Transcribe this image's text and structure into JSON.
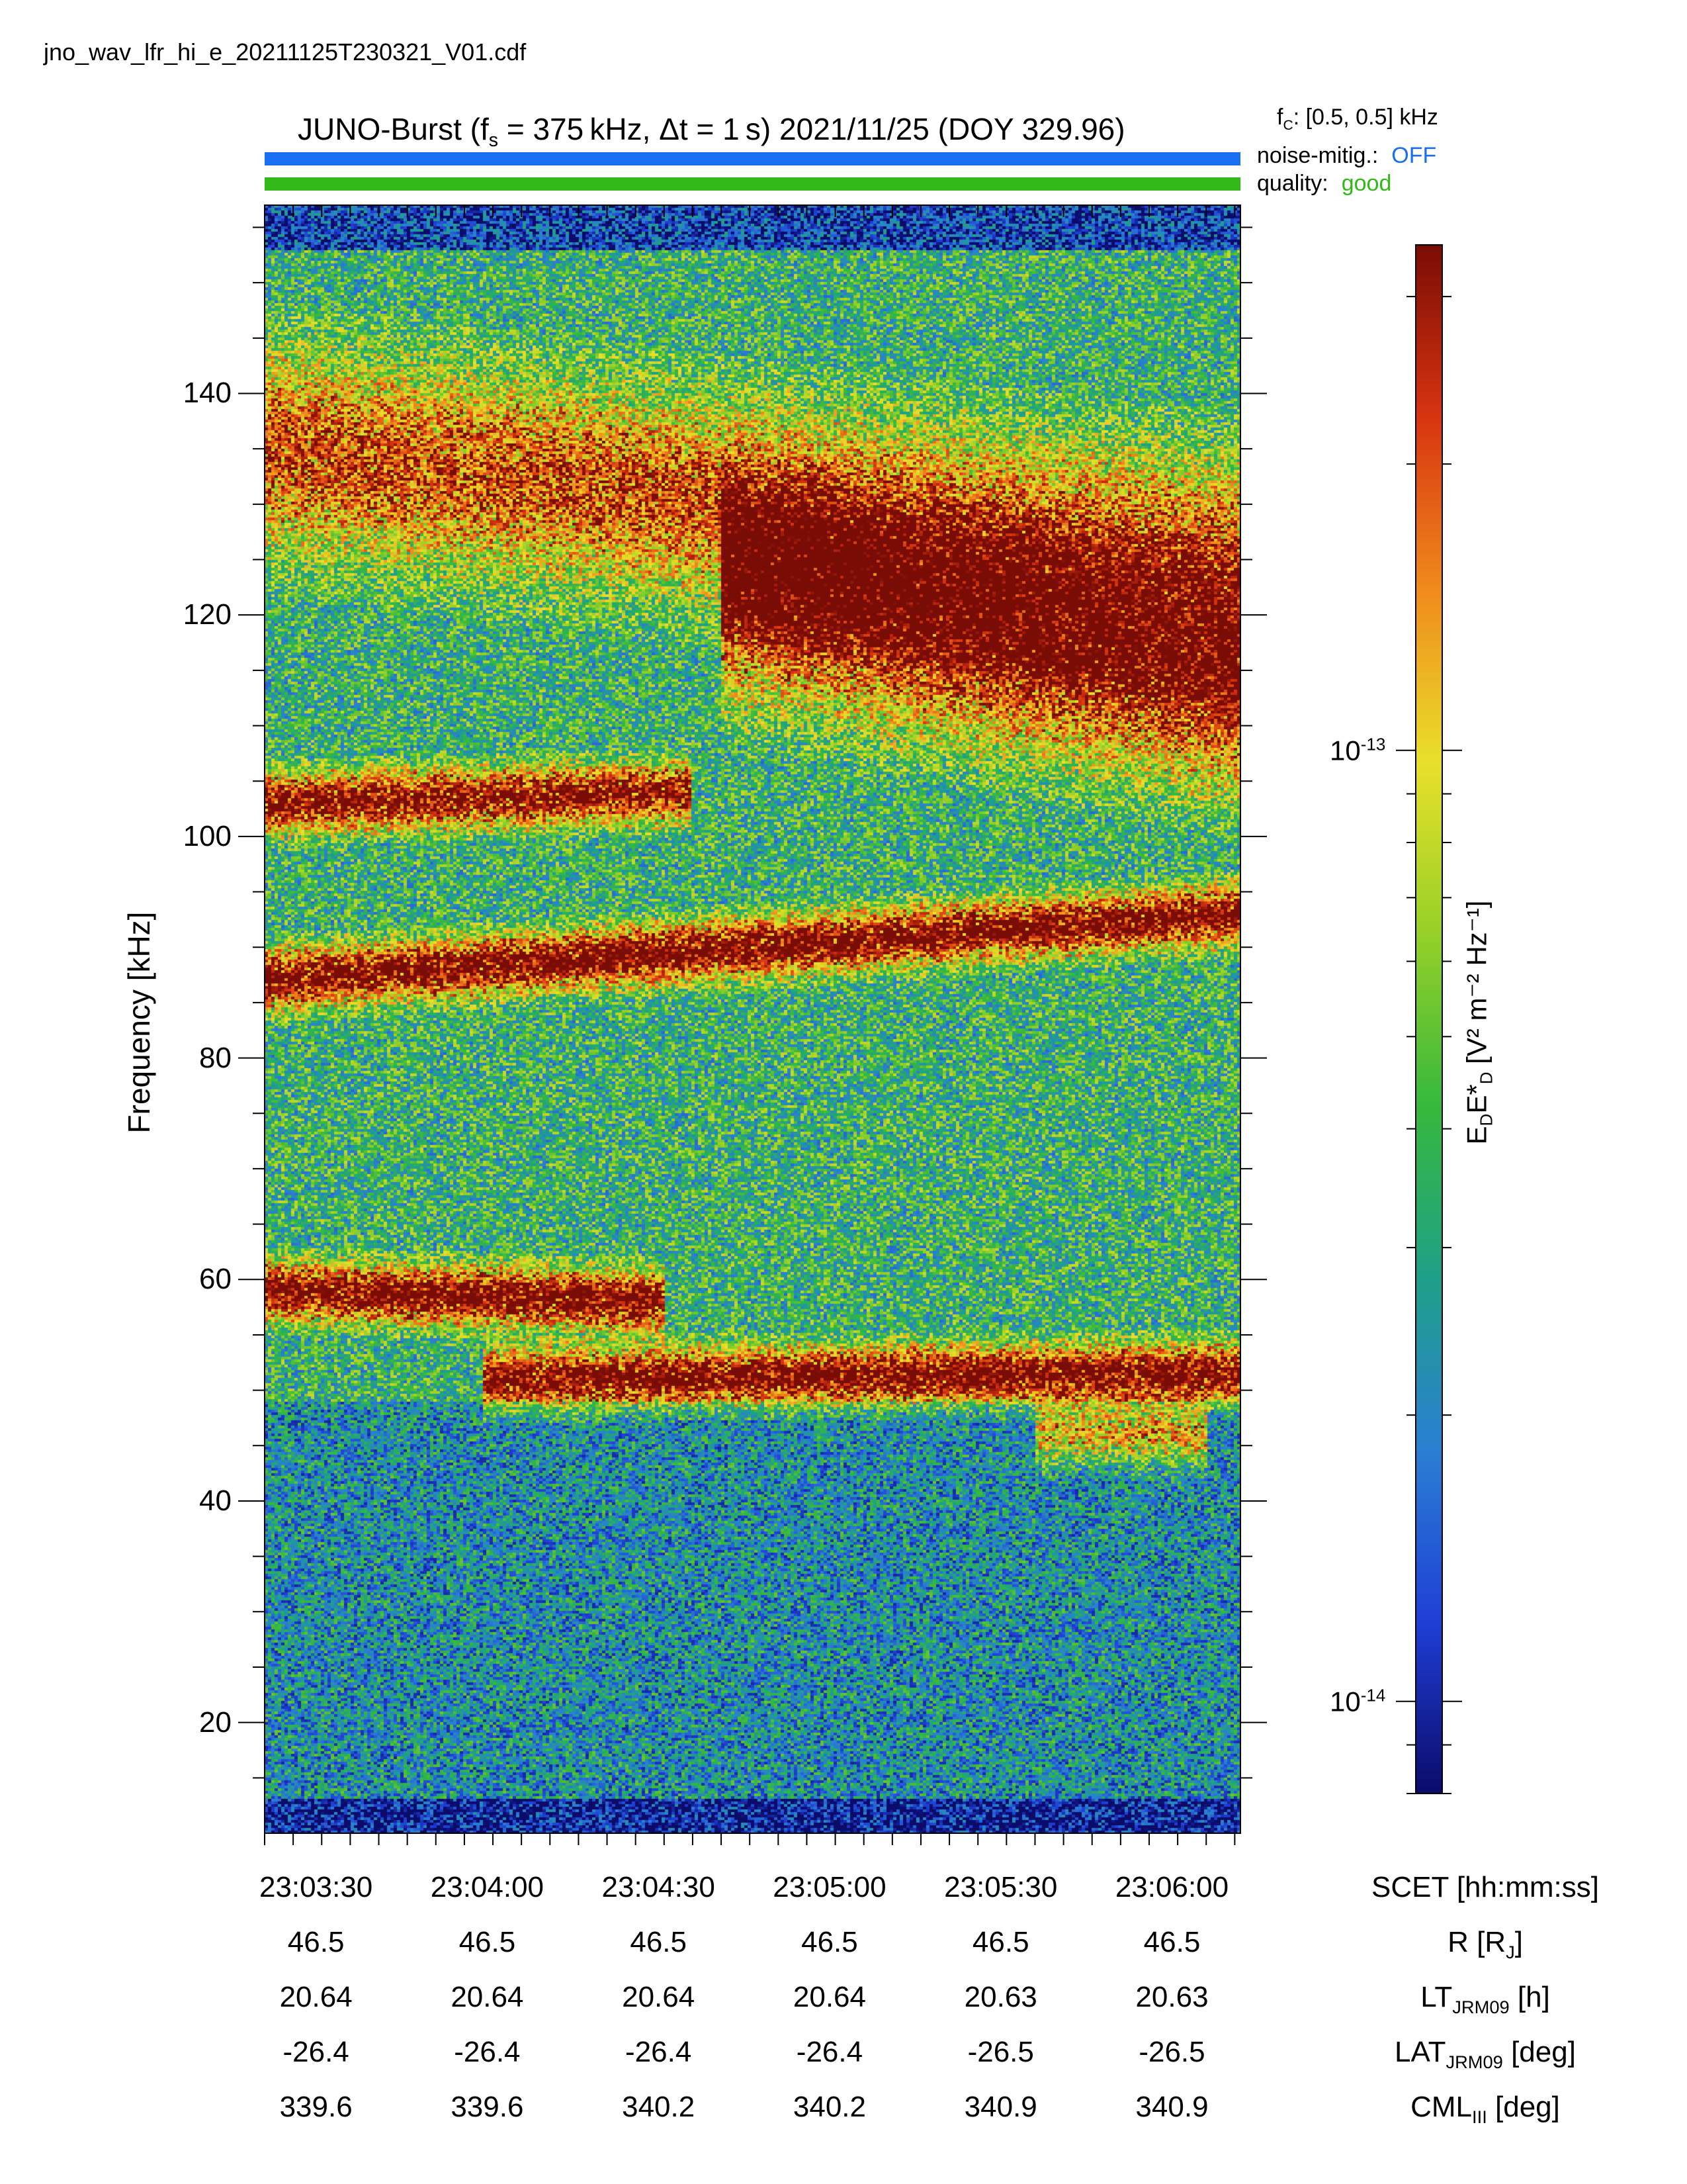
{
  "header": {
    "filename": "jno_wav_lfr_hi_e_20211125T230321_V01.cdf",
    "title_prefix": "JUNO-Burst (f",
    "title_sub": "s",
    "title_suffix": " = 375 kHz, Δt = 1 s)  2021/11/25 (DOY 329.96)",
    "fc_prefix": "f",
    "fc_sub": "C",
    "fc_suffix": ": [0.5, 0.5] kHz"
  },
  "status": {
    "noise_label": "noise-mitig.:",
    "noise_value": "OFF",
    "noise_color": "#1a6ef2",
    "quality_label": "quality:",
    "quality_value": "good",
    "quality_color": "#33b81a"
  },
  "chart_data": {
    "type": "heatmap",
    "ylabel": "Frequency [kHz]",
    "ylim": [
      10,
      157
    ],
    "yticks": [
      20,
      40,
      60,
      80,
      100,
      120,
      140
    ],
    "xlim_seconds_after_23_03_21": [
      0,
      171
    ],
    "xticks": [
      "23:03:30",
      "23:04:00",
      "23:04:30",
      "23:05:00",
      "23:05:30",
      "23:06:00"
    ],
    "colorbar": {
      "scale": "log",
      "range": [
        8e-15,
        3.4e-13
      ],
      "ticks": [
        {
          "value": 1e-13,
          "base": "10",
          "exp": "-13"
        },
        {
          "value": 1e-14,
          "base": "10",
          "exp": "-14"
        }
      ],
      "label_main": "E",
      "label_sub1": "D",
      "label_mid": "E*",
      "label_sub2": "D",
      "label_units": " [V² m⁻² Hz⁻¹]",
      "colormap": [
        "#0b0b6a",
        "#1f3fd6",
        "#2a7fd2",
        "#1fa089",
        "#36b93c",
        "#96d028",
        "#e9e02a",
        "#f08a1c",
        "#d83410",
        "#7a0c06"
      ]
    },
    "emission_bands": [
      {
        "name": "band-140",
        "freq_start": 135,
        "freq_end": 125,
        "time_start": 0,
        "time_end": 171,
        "intensity": 0.6
      },
      {
        "name": "band-102",
        "freq_start": 103,
        "freq_end": 104,
        "time_start": 0,
        "time_end": 75,
        "intensity": 0.8
      },
      {
        "name": "band-115",
        "freq_start": 122,
        "freq_end": 113,
        "time_start": 80,
        "time_end": 171,
        "intensity": 0.75
      },
      {
        "name": "band-88",
        "freq_start": 87,
        "freq_end": 93,
        "time_start": 0,
        "time_end": 171,
        "intensity": 0.85
      },
      {
        "name": "band-58",
        "freq_start": 59,
        "freq_end": 58,
        "time_start": 0,
        "time_end": 70,
        "intensity": 0.85
      },
      {
        "name": "band-51",
        "freq_start": 51,
        "freq_end": 51.5,
        "time_start": 38,
        "time_end": 171,
        "intensity": 0.85
      },
      {
        "name": "band-46",
        "freq_start": 46,
        "freq_end": 46,
        "time_start": 135,
        "time_end": 165,
        "intensity": 0.55
      }
    ],
    "background_levels": [
      {
        "freq_from": 10,
        "freq_to": 13,
        "intensity": 0.05
      },
      {
        "freq_from": 13,
        "freq_to": 49,
        "intensity": 0.28
      },
      {
        "freq_from": 49,
        "freq_to": 157,
        "intensity": 0.4
      },
      {
        "freq_from": 153,
        "freq_to": 157,
        "intensity": 0.12
      }
    ]
  },
  "ephemeris": {
    "rows": [
      {
        "name": "SCET [hh:mm:ss]",
        "values": [
          "23:03:30",
          "23:04:00",
          "23:04:30",
          "23:05:00",
          "23:05:30",
          "23:06:00"
        ]
      },
      {
        "name_main": "R [R",
        "name_sub": "J",
        "name_end": "]",
        "values": [
          "46.5",
          "46.5",
          "46.5",
          "46.5",
          "46.5",
          "46.5"
        ]
      },
      {
        "name_main": "LT",
        "name_sub": "JRM09",
        "name_end": " [h]",
        "values": [
          "20.64",
          "20.64",
          "20.64",
          "20.64",
          "20.63",
          "20.63"
        ]
      },
      {
        "name_main": "LAT",
        "name_sub": "JRM09",
        "name_end": " [deg]",
        "values": [
          "-26.4",
          "-26.4",
          "-26.4",
          "-26.4",
          "-26.5",
          "-26.5"
        ]
      },
      {
        "name_main": "CML",
        "name_sub": "III",
        "name_end": " [deg]",
        "values": [
          "339.6",
          "339.6",
          "340.2",
          "340.2",
          "340.9",
          "340.9"
        ]
      }
    ]
  }
}
